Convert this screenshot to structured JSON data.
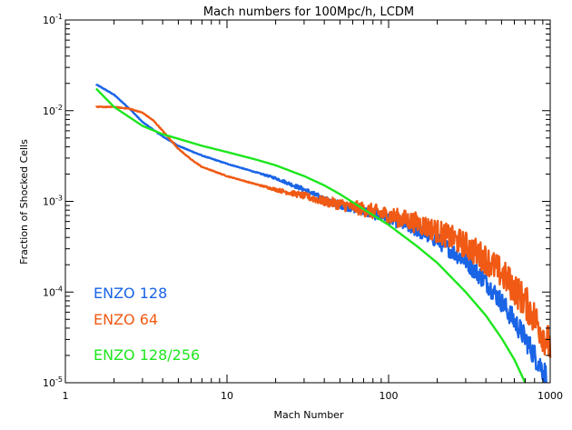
{
  "chart_data": {
    "type": "line",
    "title": "Mach numbers for 100Mpc/h, LCDM",
    "xlabel": "Mach Number",
    "ylabel": "Fraction of Shocked Cells",
    "xscale": "log",
    "yscale": "log",
    "xlim": [
      1,
      1000
    ],
    "ylim": [
      1e-05,
      0.1
    ],
    "grid": false,
    "legend_placement": "bottom-left",
    "x_ticks": [
      {
        "value": 1,
        "label": "1"
      },
      {
        "value": 10,
        "label": "10"
      },
      {
        "value": 100,
        "label": "100"
      },
      {
        "value": 1000,
        "label": "1000"
      }
    ],
    "y_ticks": [
      {
        "value": 1e-05,
        "base": "10",
        "exp": "-5"
      },
      {
        "value": 0.0001,
        "base": "10",
        "exp": "-4"
      },
      {
        "value": 0.001,
        "base": "10",
        "exp": "-3"
      },
      {
        "value": 0.01,
        "base": "10",
        "exp": "-2"
      },
      {
        "value": 0.1,
        "base": "10",
        "exp": "-1"
      }
    ],
    "series": [
      {
        "name": "ENZO 128",
        "color": "#1a64e6",
        "noise": 0.18,
        "x": [
          1.55,
          2,
          2.5,
          3,
          4,
          5,
          7,
          10,
          15,
          20,
          30,
          40,
          50,
          70,
          100,
          150,
          200,
          300,
          400,
          500,
          600,
          700,
          800,
          900,
          1000
        ],
        "y": [
          0.0195,
          0.015,
          0.0105,
          0.0075,
          0.0052,
          0.0041,
          0.0032,
          0.0026,
          0.0021,
          0.0018,
          0.00135,
          0.00105,
          0.00092,
          0.00078,
          0.00065,
          0.00048,
          0.00037,
          0.00022,
          0.00013,
          7.8e-05,
          4.8e-05,
          3.1e-05,
          2e-05,
          1.4e-05,
          1e-05
        ]
      },
      {
        "name": "ENZO 64",
        "color": "#f05a14",
        "noise": 0.28,
        "x": [
          1.55,
          2,
          2.5,
          3,
          3.5,
          4,
          5,
          6,
          7,
          10,
          15,
          20,
          30,
          40,
          50,
          70,
          100,
          150,
          200,
          300,
          400,
          500,
          600,
          700,
          800,
          900,
          1000
        ],
        "y": [
          0.011,
          0.011,
          0.0105,
          0.0095,
          0.0078,
          0.006,
          0.0038,
          0.0029,
          0.0024,
          0.0019,
          0.00155,
          0.00135,
          0.00115,
          0.001,
          0.00093,
          0.00082,
          0.0007,
          0.00058,
          0.00047,
          0.00033,
          0.00023,
          0.00016,
          0.00011,
          7.8e-05,
          5.2e-05,
          3.5e-05,
          2.5e-05
        ]
      },
      {
        "name": "ENZO 128/256",
        "color": "#1ee61e",
        "noise": 0.0,
        "x": [
          1.55,
          2,
          3,
          4,
          5,
          7,
          10,
          15,
          20,
          30,
          40,
          50,
          70,
          100,
          150,
          200,
          300,
          400,
          500,
          600,
          700
        ],
        "y": [
          0.0175,
          0.011,
          0.0068,
          0.0055,
          0.0049,
          0.0041,
          0.0035,
          0.0029,
          0.0025,
          0.0019,
          0.0015,
          0.0012,
          0.00082,
          0.00055,
          0.00032,
          0.00021,
          0.0001,
          5.5e-05,
          3.1e-05,
          1.8e-05,
          1e-05
        ]
      }
    ],
    "legend": [
      {
        "label": "ENZO 128",
        "color": "#1a64e6"
      },
      {
        "label": "ENZO 64",
        "color": "#f05a14"
      },
      {
        "label": "ENZO 128/256",
        "color": "#1ee61e"
      }
    ]
  }
}
